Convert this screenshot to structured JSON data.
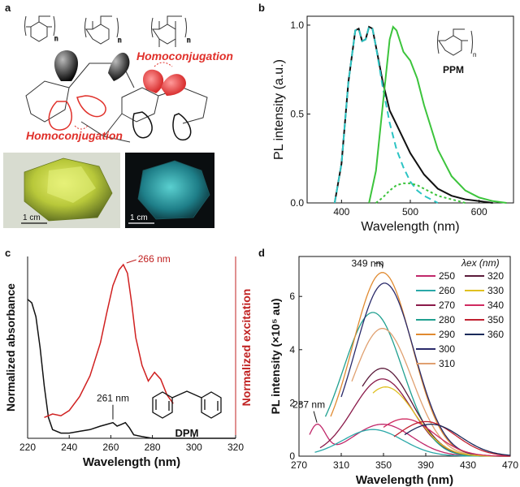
{
  "panels": {
    "a": "a",
    "b": "b",
    "c": "c",
    "d": "d"
  },
  "panel_a": {
    "homoconj_top": "Homoconjugation",
    "homoconj_bottom": "Homoconjugation",
    "subscript_n": "n",
    "scale_left": "1 cm",
    "scale_right": "1 cm",
    "colors": {
      "red": "#e0302a",
      "photo_left": "#c8d84a",
      "photo_right": "#2a8e8c"
    }
  },
  "chart_data": [
    {
      "id": "b",
      "type": "line",
      "xlabel": "Wavelength (nm)",
      "ylabel": "PL intensity (a.u.)",
      "xlim": [
        350,
        650
      ],
      "ylim": [
        0,
        1.05
      ],
      "xticks": [
        "400",
        "500",
        "600"
      ],
      "yticks": [
        "0.0",
        "0.5",
        "1.0"
      ],
      "inset_label": "PPM",
      "series": [
        {
          "name": "black-solid",
          "color": "#111111",
          "style": "solid",
          "x": [
            390,
            400,
            410,
            420,
            425,
            430,
            435,
            440,
            445,
            450,
            460,
            470,
            480,
            490,
            500,
            520,
            540,
            560,
            580,
            600,
            620
          ],
          "y": [
            0.0,
            0.22,
            0.68,
            0.97,
            0.98,
            0.91,
            0.92,
            0.99,
            0.98,
            0.88,
            0.68,
            0.52,
            0.44,
            0.36,
            0.28,
            0.16,
            0.08,
            0.04,
            0.02,
            0.01,
            0.0
          ]
        },
        {
          "name": "cyan-dashed",
          "color": "#2cc4c4",
          "style": "dashed",
          "x": [
            390,
            400,
            410,
            420,
            425,
            430,
            435,
            440,
            445,
            450,
            460,
            470,
            480,
            490,
            500,
            510,
            520,
            530,
            540
          ],
          "y": [
            0.0,
            0.22,
            0.68,
            0.97,
            0.98,
            0.91,
            0.92,
            0.99,
            0.98,
            0.88,
            0.65,
            0.45,
            0.3,
            0.2,
            0.12,
            0.07,
            0.04,
            0.02,
            0.0
          ]
        },
        {
          "name": "green-solid",
          "color": "#3cc43c",
          "style": "solid",
          "x": [
            440,
            450,
            460,
            470,
            475,
            480,
            490,
            500,
            510,
            520,
            540,
            560,
            580,
            600,
            620,
            640
          ],
          "y": [
            0.0,
            0.18,
            0.55,
            0.92,
            0.99,
            0.97,
            0.85,
            0.8,
            0.7,
            0.55,
            0.3,
            0.15,
            0.07,
            0.03,
            0.01,
            0.0
          ]
        },
        {
          "name": "green-dotted",
          "color": "#3cc43c",
          "style": "dotted",
          "x": [
            450,
            460,
            470,
            480,
            490,
            500,
            510,
            520,
            540,
            560,
            580
          ],
          "y": [
            0.0,
            0.03,
            0.07,
            0.1,
            0.11,
            0.11,
            0.1,
            0.08,
            0.04,
            0.02,
            0.0
          ]
        }
      ]
    },
    {
      "id": "c",
      "type": "line",
      "xlabel": "Wavelength (nm)",
      "ylabel_left": "Normalized absorbance",
      "ylabel_right": "Normalized excitation",
      "xlim": [
        220,
        320
      ],
      "xticks": [
        "220",
        "240",
        "260",
        "280",
        "300",
        "320"
      ],
      "annotations": [
        "266 nm",
        "261 nm"
      ],
      "molecule_label": "DPM",
      "series": [
        {
          "name": "absorbance",
          "color": "#111111",
          "x": [
            220,
            222,
            224,
            226,
            228,
            230,
            232,
            236,
            240,
            245,
            250,
            255,
            258,
            261,
            263,
            265,
            267,
            269,
            271,
            275,
            280,
            290,
            300,
            320
          ],
          "y": [
            0.8,
            0.78,
            0.7,
            0.52,
            0.3,
            0.12,
            0.05,
            0.03,
            0.03,
            0.04,
            0.05,
            0.07,
            0.08,
            0.09,
            0.07,
            0.08,
            0.09,
            0.06,
            0.02,
            0.01,
            0.0,
            0.0,
            0.0,
            0.0
          ]
        },
        {
          "name": "excitation",
          "color": "#d02020",
          "x": [
            228,
            232,
            236,
            240,
            245,
            250,
            255,
            258,
            261,
            264,
            266,
            268,
            270,
            272,
            275,
            278,
            281,
            284,
            287,
            290
          ],
          "y": [
            0.12,
            0.14,
            0.13,
            0.16,
            0.24,
            0.36,
            0.55,
            0.72,
            0.88,
            0.97,
            1.0,
            0.95,
            0.78,
            0.58,
            0.42,
            0.33,
            0.38,
            0.34,
            0.25,
            0.2
          ]
        }
      ]
    },
    {
      "id": "d",
      "type": "line",
      "xlabel": "Wavelength (nm)",
      "ylabel": "PL intensity (×10⁵ au)",
      "xlim": [
        270,
        470
      ],
      "ylim": [
        0,
        7.5
      ],
      "xticks": [
        "270",
        "310",
        "350",
        "390",
        "430",
        "470"
      ],
      "yticks": [
        "0",
        "2",
        "4",
        "6"
      ],
      "annotations": [
        "349 nm",
        "287 nm"
      ],
      "legend_title": "λex (nm)",
      "series": [
        {
          "name": "250",
          "color": "#c0286a",
          "peak": 349,
          "start": 280,
          "amp": 1.2
        },
        {
          "name": "260",
          "color": "#2aa8a8",
          "peak": 340,
          "start": 285,
          "amp": 1.0
        },
        {
          "name": "270",
          "color": "#8a1a4a",
          "peak": 349,
          "start": 290,
          "amp": 2.9
        },
        {
          "name": "280",
          "color": "#20a090",
          "peak": 340,
          "start": 295,
          "amp": 5.4
        },
        {
          "name": "290",
          "color": "#e08a30",
          "peak": 349,
          "start": 300,
          "amp": 6.9
        },
        {
          "name": "300",
          "color": "#2a2a6a",
          "peak": 351,
          "start": 310,
          "amp": 6.5
        },
        {
          "name": "310",
          "color": "#e0a070",
          "peak": 349,
          "start": 320,
          "amp": 4.8
        },
        {
          "name": "320",
          "color": "#5a1a3a",
          "peak": 349,
          "start": 330,
          "amp": 3.3
        },
        {
          "name": "330",
          "color": "#e0c020",
          "peak": 352,
          "start": 340,
          "amp": 2.6
        },
        {
          "name": "340",
          "color": "#d02a60",
          "peak": 370,
          "start": 350,
          "amp": 1.4
        },
        {
          "name": "350",
          "color": "#c02030",
          "peak": 390,
          "start": 360,
          "amp": 1.3
        },
        {
          "name": "360",
          "color": "#1a2a5a",
          "peak": 395,
          "start": 370,
          "amp": 1.2
        }
      ]
    }
  ]
}
